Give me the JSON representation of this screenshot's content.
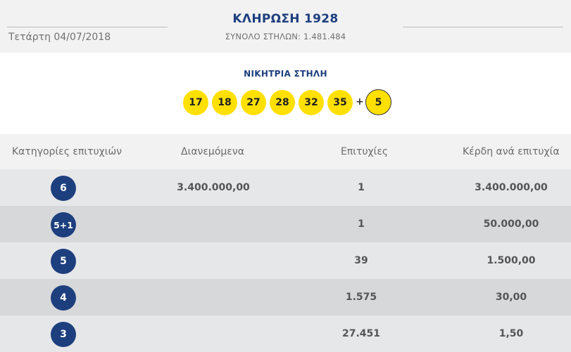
{
  "header": {
    "title": "ΚΛΗΡΩΣΗ 1928",
    "total_columns": "ΣΥΝΟΛΟ ΣΤΗΛΩΝ: 1.481.484",
    "date": "Τετάρτη 04/07/2018"
  },
  "winning": {
    "label": "ΝΙΚΗΤΡΙΑ ΣΤΗΛΗ",
    "numbers": [
      "17",
      "18",
      "27",
      "28",
      "32",
      "35"
    ],
    "plus": "+",
    "bonus": "5",
    "ball_color": "#ffe000"
  },
  "table": {
    "headers": {
      "category": "Κατηγορίες επιτυχιών",
      "distributed": "Διανεμόμενα",
      "winners": "Επιτυχίες",
      "prize": "Κέρδη ανά επιτυχία"
    },
    "rows": [
      {
        "category": "6",
        "distributed": "3.400.000,00",
        "winners": "1",
        "prize": "3.400.000,00"
      },
      {
        "category": "5+1",
        "distributed": "",
        "winners": "1",
        "prize": "50.000,00"
      },
      {
        "category": "5",
        "distributed": "",
        "winners": "39",
        "prize": "1.500,00"
      },
      {
        "category": "4",
        "distributed": "",
        "winners": "1.575",
        "prize": "30,00"
      },
      {
        "category": "3",
        "distributed": "",
        "winners": "27.451",
        "prize": "1,50"
      }
    ]
  },
  "colors": {
    "accent_blue": "#1d3f7e",
    "row_light": "#e6e7e9",
    "row_dark": "#d7d8da"
  }
}
